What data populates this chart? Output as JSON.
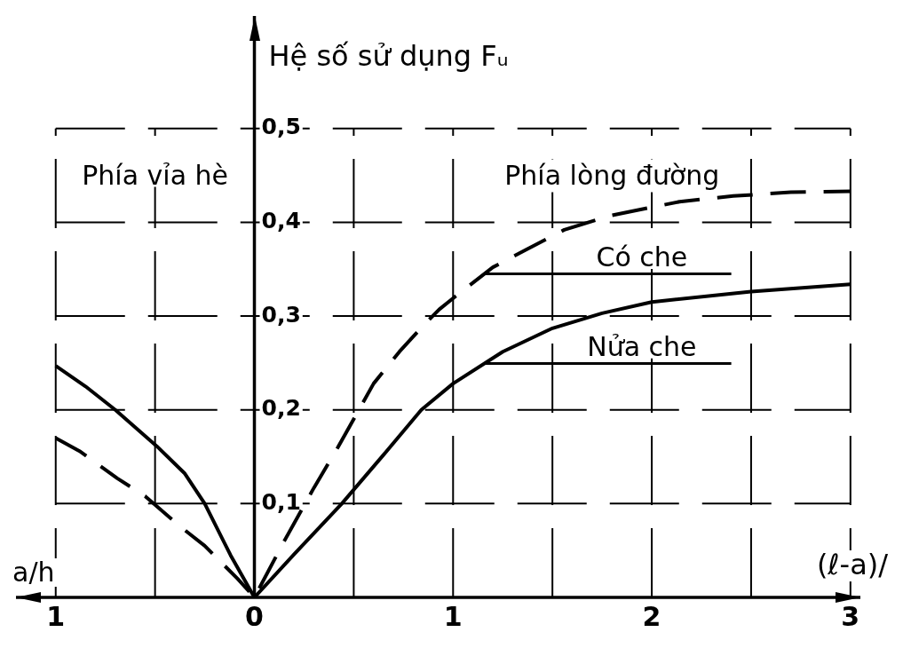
{
  "chart_data": {
    "type": "line",
    "ylabel": "Hệ số sử dụng Fᵤ",
    "xlabel": "(ℓ-a)/",
    "annotations": [
      "Phía vỉa hè",
      "Phía lòng đường",
      "a/h"
    ],
    "xlim": [
      -1.2,
      3.05
    ],
    "ylim": [
      0,
      0.62
    ],
    "xticks": [
      {
        "value": -1,
        "label": "1"
      },
      {
        "value": -0.5,
        "label": null
      },
      0,
      {
        "value": 0.5,
        "label": null
      },
      1,
      {
        "value": 1.5,
        "label": null
      },
      2,
      {
        "value": 2.5,
        "label": null
      },
      3
    ],
    "yticks": [
      {
        "value": 0.1,
        "label": "0,1"
      },
      {
        "value": 0.2,
        "label": "0,2"
      },
      {
        "value": 0.3,
        "label": "0,3"
      },
      {
        "value": 0.4,
        "label": "0,4"
      },
      {
        "value": 0.5,
        "label": "0,5"
      }
    ],
    "grid": true,
    "legend": false,
    "marker": "none",
    "series": [
      {
        "name": "Có che",
        "color": "#000000",
        "line_style": "dashed",
        "x": [
          -1,
          -0.88,
          -0.69,
          -0.55,
          -0.37,
          -0.25,
          -0.085,
          0,
          0.15,
          0.3,
          0.42,
          0.6,
          0.73,
          0.85,
          0.93,
          1,
          1.2,
          1.37,
          1.56,
          1.79,
          2.14,
          2.41,
          2.7,
          3
        ],
        "values": [
          0.17,
          0.156,
          0.127,
          0.108,
          0.075,
          0.055,
          0.02,
          0,
          0.06,
          0.117,
          0.16,
          0.228,
          0.262,
          0.29,
          0.307,
          0.319,
          0.352,
          0.371,
          0.392,
          0.407,
          0.422,
          0.428,
          0.432,
          0.433
        ]
      },
      {
        "name": "Nửa che",
        "color": "#000000",
        "line_style": "solid",
        "x": [
          -1,
          -0.85,
          -0.7,
          -0.49,
          -0.35,
          -0.25,
          -0.12,
          0,
          0.2,
          0.44,
          0.65,
          0.84,
          1,
          1.25,
          1.5,
          1.75,
          2,
          2.5,
          3
        ],
        "values": [
          0.247,
          0.225,
          0.2,
          0.161,
          0.132,
          0.1,
          0.045,
          0,
          0.046,
          0.1,
          0.152,
          0.2,
          0.228,
          0.262,
          0.287,
          0.303,
          0.315,
          0.326,
          0.334
        ]
      }
    ]
  }
}
